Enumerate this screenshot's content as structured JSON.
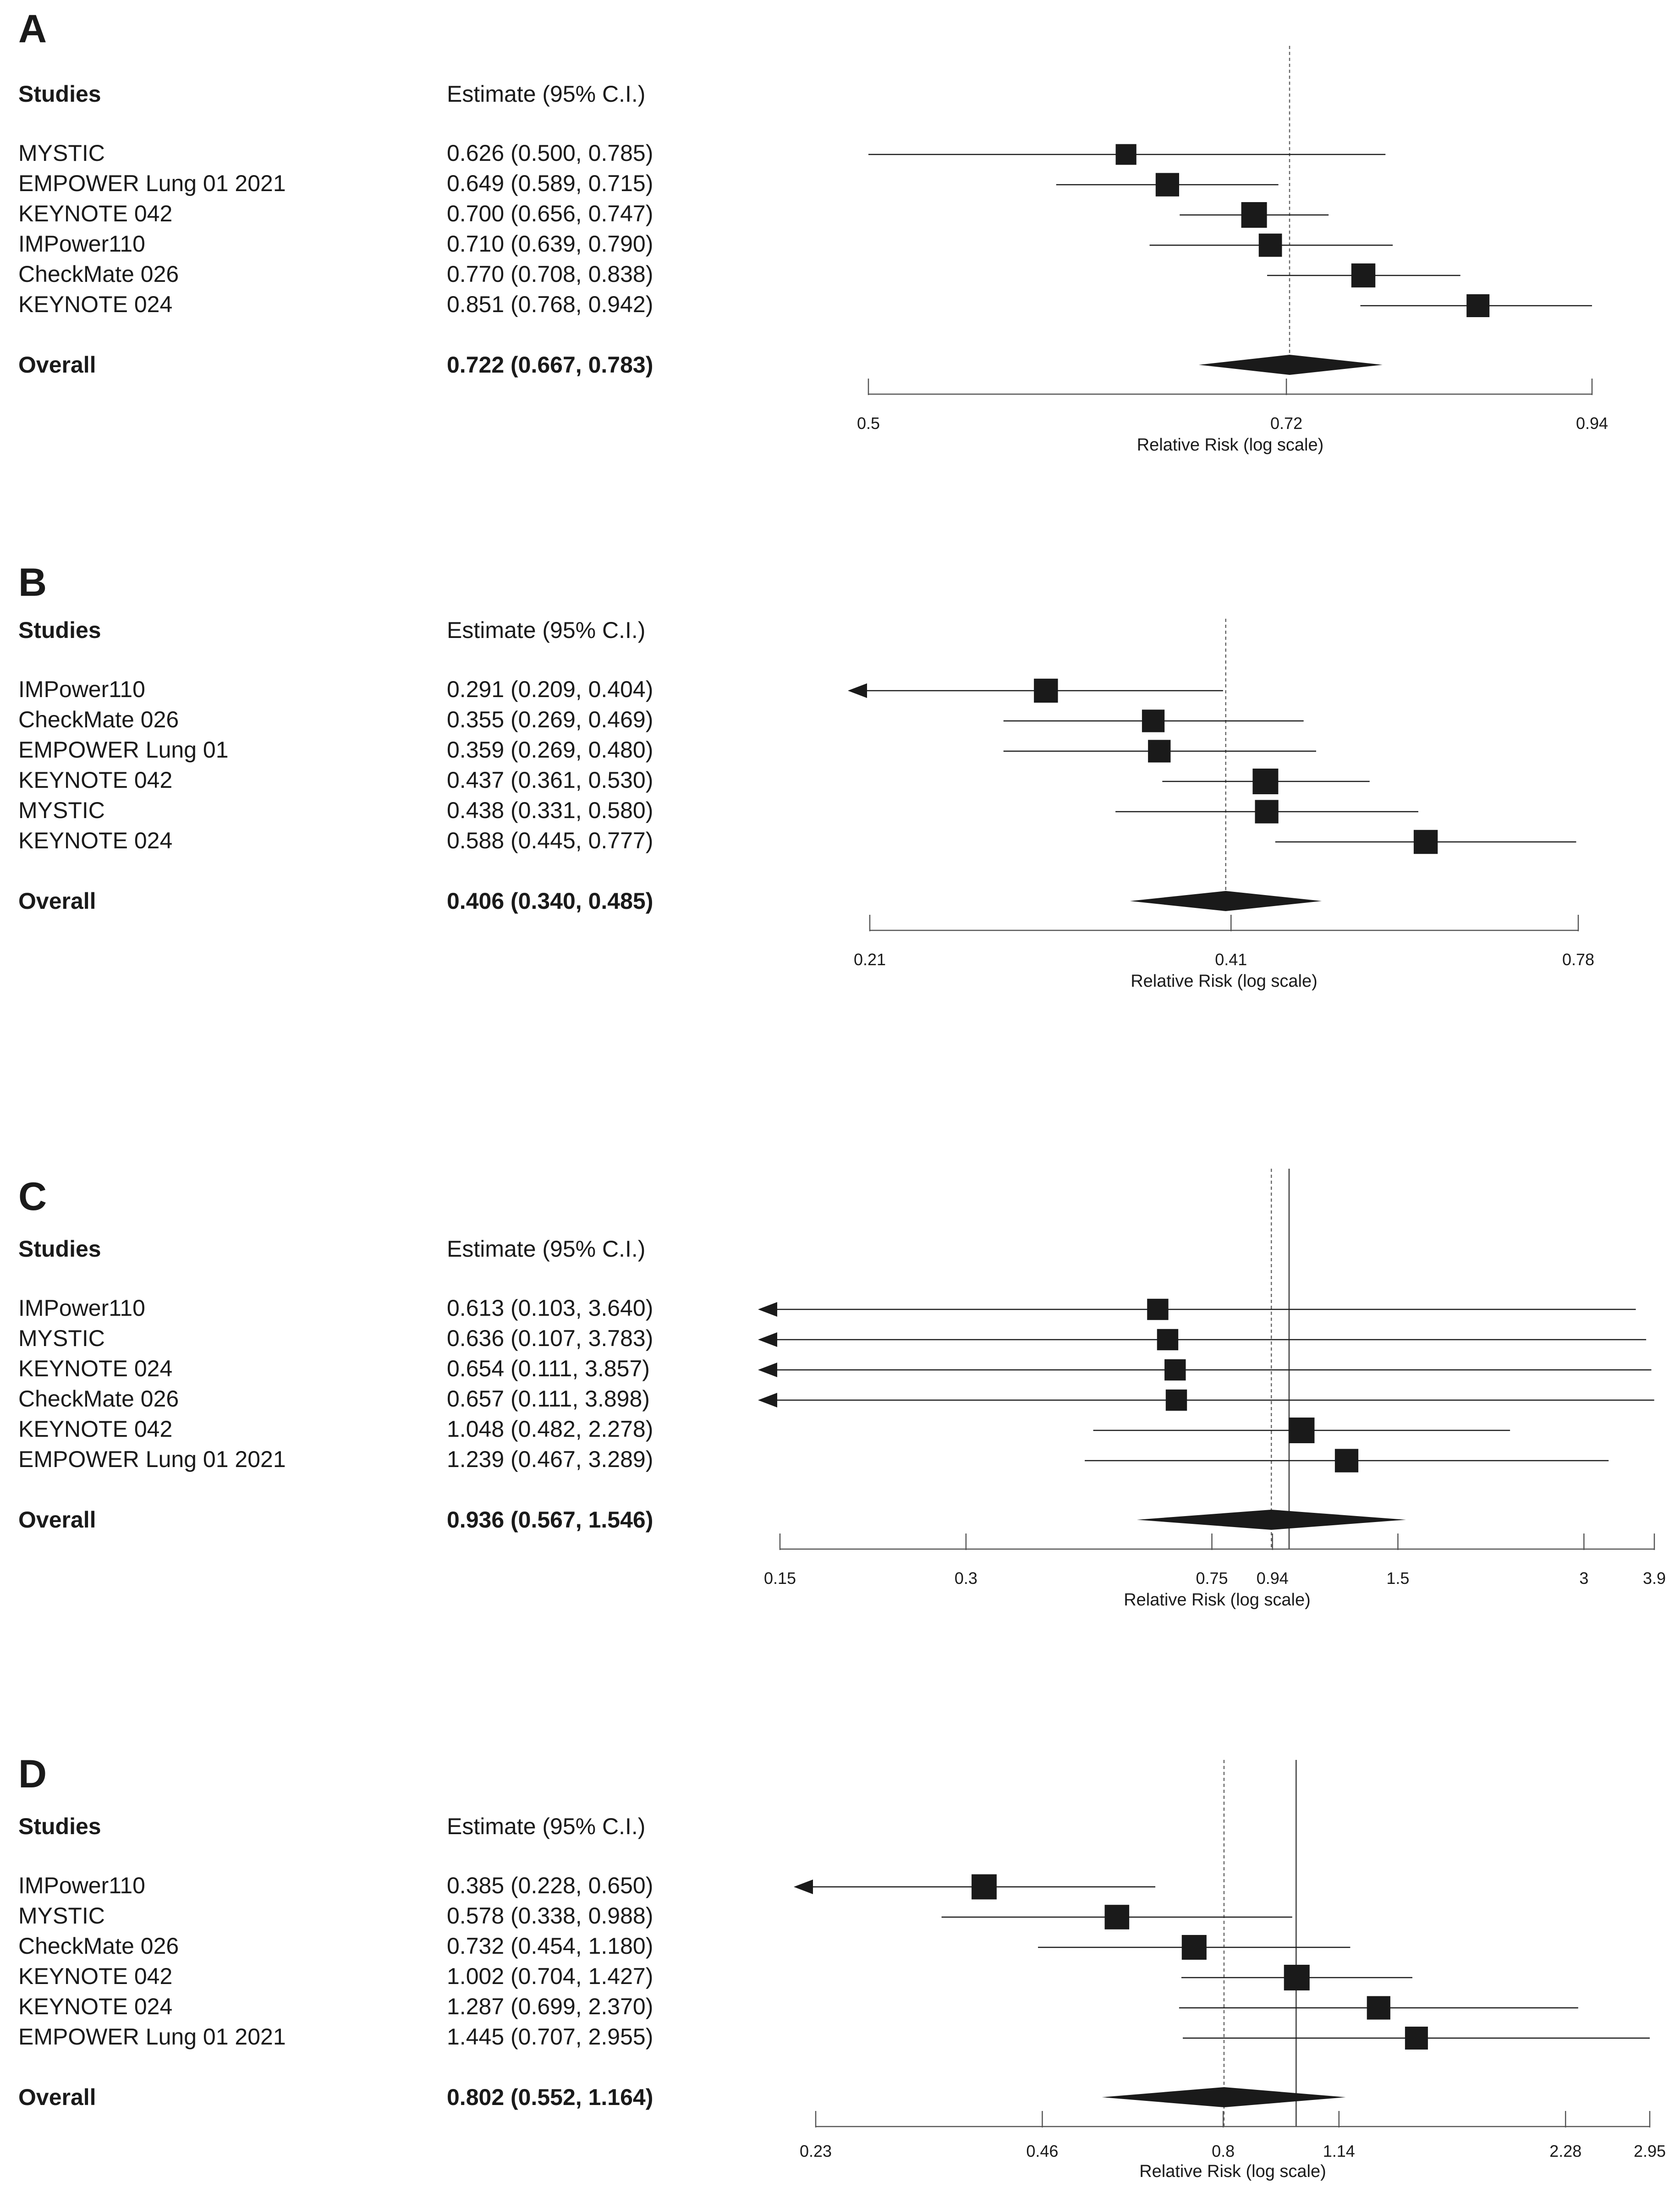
{
  "chart_data": [
    {
      "type": "forest",
      "panel": "A",
      "header": {
        "studies": "Studies",
        "estimate": "Estimate (95% C.I.)"
      },
      "xlabel": "Relative Risk (log scale)",
      "xlim": [
        0.5,
        0.94
      ],
      "ticks": [
        {
          "v": 0.5,
          "label": "0.5"
        },
        {
          "v": 0.72,
          "label": "0.72"
        },
        {
          "v": 0.94,
          "label": "0.94"
        }
      ],
      "ref_dotted": 0.722,
      "ref_solid": null,
      "studies": [
        {
          "name": "MYSTIC",
          "estimate_text": "0.626 (0.500, 0.785)",
          "est": 0.626,
          "lo": 0.5,
          "hi": 0.785,
          "weight": 0.55
        },
        {
          "name": "EMPOWER Lung 01 2021",
          "estimate_text": "0.649 (0.589, 0.715)",
          "est": 0.649,
          "lo": 0.589,
          "hi": 0.715,
          "weight": 0.8
        },
        {
          "name": "KEYNOTE 042",
          "estimate_text": "0.700 (0.656, 0.747)",
          "est": 0.7,
          "lo": 0.656,
          "hi": 0.747,
          "weight": 1.0
        },
        {
          "name": "IMPower110",
          "estimate_text": "0.710 (0.639, 0.790)",
          "est": 0.71,
          "lo": 0.639,
          "hi": 0.79,
          "weight": 0.78
        },
        {
          "name": "CheckMate 026",
          "estimate_text": "0.770 (0.708, 0.838)",
          "est": 0.77,
          "lo": 0.708,
          "hi": 0.838,
          "weight": 0.85
        },
        {
          "name": "KEYNOTE 024",
          "estimate_text": "0.851 (0.768, 0.942)",
          "est": 0.851,
          "lo": 0.768,
          "hi": 0.942,
          "weight": 0.75
        }
      ],
      "overall": {
        "name": "Overall",
        "estimate_text": "0.722 (0.667, 0.783)",
        "est": 0.722,
        "lo": 0.667,
        "hi": 0.783
      }
    },
    {
      "type": "forest",
      "panel": "B",
      "header": {
        "studies": "Studies",
        "estimate": "Estimate (95% C.I.)"
      },
      "xlabel": "Relative Risk (log scale)",
      "xlim": [
        0.21,
        0.78
      ],
      "ticks": [
        {
          "v": 0.21,
          "label": "0.21"
        },
        {
          "v": 0.41,
          "label": "0.41"
        },
        {
          "v": 0.78,
          "label": "0.78"
        }
      ],
      "ref_dotted": 0.406,
      "ref_solid": null,
      "studies": [
        {
          "name": "IMPower110",
          "estimate_text": "0.291 (0.209, 0.404)",
          "est": 0.291,
          "lo": 0.209,
          "hi": 0.404,
          "weight": 0.85
        },
        {
          "name": "CheckMate 026",
          "estimate_text": "0.355 (0.269, 0.469)",
          "est": 0.355,
          "lo": 0.269,
          "hi": 0.469,
          "weight": 0.72
        },
        {
          "name": "EMPOWER Lung 01",
          "estimate_text": "0.359 (0.269, 0.480)",
          "est": 0.359,
          "lo": 0.269,
          "hi": 0.48,
          "weight": 0.72
        },
        {
          "name": "KEYNOTE 042",
          "estimate_text": "0.437 (0.361, 0.530)",
          "est": 0.437,
          "lo": 0.361,
          "hi": 0.53,
          "weight": 1.0
        },
        {
          "name": "MYSTIC",
          "estimate_text": "0.438 (0.331, 0.580)",
          "est": 0.438,
          "lo": 0.331,
          "hi": 0.58,
          "weight": 0.8
        },
        {
          "name": "KEYNOTE 024",
          "estimate_text": "0.588 (0.445, 0.777)",
          "est": 0.588,
          "lo": 0.445,
          "hi": 0.777,
          "weight": 0.85
        }
      ],
      "overall": {
        "name": "Overall",
        "estimate_text": "0.406 (0.340, 0.485)",
        "est": 0.406,
        "lo": 0.34,
        "hi": 0.485
      }
    },
    {
      "type": "forest",
      "panel": "C",
      "header": {
        "studies": "Studies",
        "estimate": "Estimate (95% C.I.)"
      },
      "xlabel": "Relative Risk (log scale)",
      "xlim": [
        0.15,
        3.9
      ],
      "ticks": [
        {
          "v": 0.15,
          "label": "0.15"
        },
        {
          "v": 0.3,
          "label": "0.3"
        },
        {
          "v": 0.75,
          "label": "0.75"
        },
        {
          "v": 0.94,
          "label": "0.94"
        },
        {
          "v": 1.5,
          "label": "1.5"
        },
        {
          "v": 3,
          "label": "3"
        },
        {
          "v": 3.9,
          "label": "3.9"
        }
      ],
      "ref_dotted": 0.936,
      "ref_solid": 1,
      "studies": [
        {
          "name": "IMPower110",
          "estimate_text": "0.613 (0.103, 3.640)",
          "est": 0.613,
          "lo": 0.103,
          "hi": 3.64,
          "weight": 0.6
        },
        {
          "name": "MYSTIC",
          "estimate_text": "0.636 (0.107, 3.783)",
          "est": 0.636,
          "lo": 0.107,
          "hi": 3.783,
          "weight": 0.6
        },
        {
          "name": "KEYNOTE 024",
          "estimate_text": "0.654 (0.111, 3.857)",
          "est": 0.654,
          "lo": 0.111,
          "hi": 3.857,
          "weight": 0.6
        },
        {
          "name": "CheckMate 026",
          "estimate_text": "0.657 (0.111, 3.898)",
          "est": 0.657,
          "lo": 0.111,
          "hi": 3.898,
          "weight": 0.6
        },
        {
          "name": "KEYNOTE 042",
          "estimate_text": "1.048 (0.482, 2.278)",
          "est": 1.048,
          "lo": 0.482,
          "hi": 2.278,
          "weight": 1.0
        },
        {
          "name": "EMPOWER Lung 01 2021",
          "estimate_text": "1.239 (0.467, 3.289)",
          "est": 1.239,
          "lo": 0.467,
          "hi": 3.289,
          "weight": 0.8
        }
      ],
      "overall": {
        "name": "Overall",
        "estimate_text": "0.936 (0.567, 1.546)",
        "est": 0.936,
        "lo": 0.567,
        "hi": 1.546
      }
    },
    {
      "type": "forest",
      "panel": "D",
      "header": {
        "studies": "Studies",
        "estimate": "Estimate (95% C.I.)"
      },
      "xlabel": "Relative Risk (log scale)",
      "xlim": [
        0.23,
        2.95
      ],
      "ticks": [
        {
          "v": 0.23,
          "label": "0.23"
        },
        {
          "v": 0.46,
          "label": "0.46"
        },
        {
          "v": 0.8,
          "label": "0.8"
        },
        {
          "v": 1.14,
          "label": "1.14"
        },
        {
          "v": 2.28,
          "label": "2.28"
        },
        {
          "v": 2.95,
          "label": "2.95"
        }
      ],
      "ref_dotted": 0.802,
      "ref_solid": 1,
      "studies": [
        {
          "name": "IMPower110",
          "estimate_text": "0.385 (0.228, 0.650)",
          "est": 0.385,
          "lo": 0.228,
          "hi": 0.65,
          "weight": 0.95
        },
        {
          "name": "MYSTIC",
          "estimate_text": "0.578 (0.338, 0.988)",
          "est": 0.578,
          "lo": 0.338,
          "hi": 0.988,
          "weight": 0.9
        },
        {
          "name": "CheckMate 026",
          "estimate_text": "0.732 (0.454, 1.180)",
          "est": 0.732,
          "lo": 0.454,
          "hi": 1.18,
          "weight": 0.92
        },
        {
          "name": "KEYNOTE 042",
          "estimate_text": "1.002 (0.704, 1.427)",
          "est": 1.002,
          "lo": 0.704,
          "hi": 1.427,
          "weight": 1.0
        },
        {
          "name": "KEYNOTE 024",
          "estimate_text": "1.287 (0.699, 2.370)",
          "est": 1.287,
          "lo": 0.699,
          "hi": 2.37,
          "weight": 0.8
        },
        {
          "name": "EMPOWER Lung 01 2021",
          "estimate_text": "1.445 (0.707, 2.955)",
          "est": 1.445,
          "lo": 0.707,
          "hi": 2.955,
          "weight": 0.75
        }
      ],
      "overall": {
        "name": "Overall",
        "estimate_text": "0.802 (0.552, 1.164)",
        "est": 0.802,
        "lo": 0.552,
        "hi": 1.164
      }
    }
  ]
}
